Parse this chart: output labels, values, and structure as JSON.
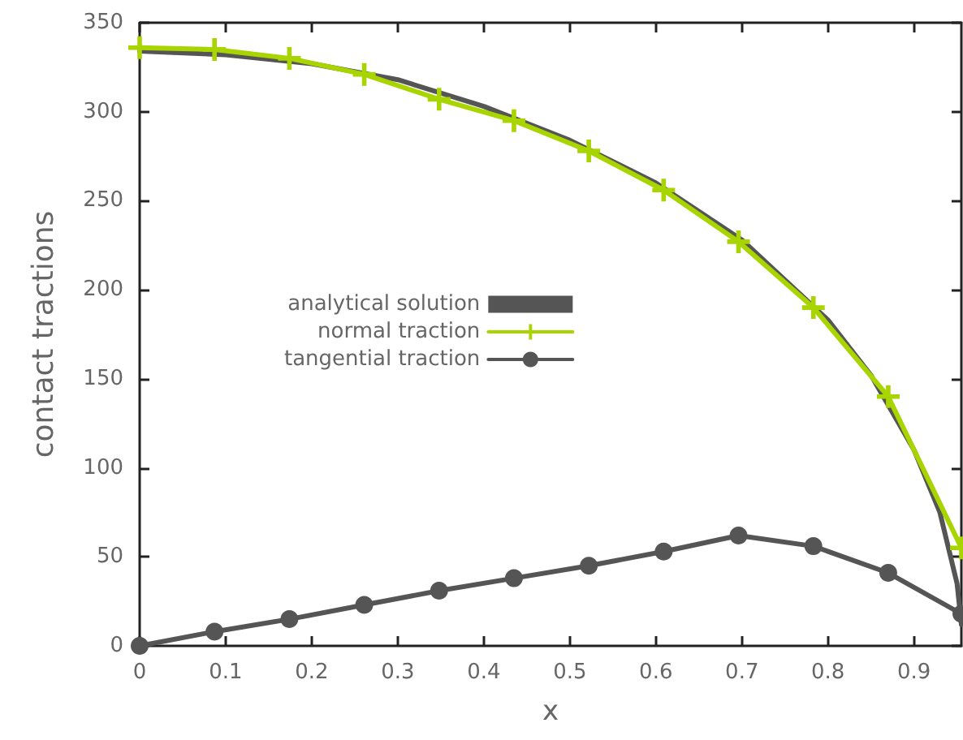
{
  "chart_data": {
    "type": "line",
    "xlabel": "x",
    "ylabel": "contact tractions",
    "xlim": [
      0,
      0.955
    ],
    "xticks": [
      0,
      0.1,
      0.2,
      0.3,
      0.4,
      0.5,
      0.6,
      0.7,
      0.8,
      0.9
    ],
    "ylim": [
      0,
      350
    ],
    "yticks": [
      0,
      50,
      100,
      150,
      200,
      250,
      300,
      350
    ],
    "grid": false,
    "legend": "center",
    "series": [
      {
        "name": "analytical solution",
        "color": "#555555",
        "marker": "none",
        "x": [
          0,
          0.1,
          0.2,
          0.3,
          0.4,
          0.5,
          0.6,
          0.7,
          0.8,
          0.85,
          0.9,
          0.93,
          0.95,
          0.955
        ],
        "values": [
          334,
          332,
          327,
          318,
          303,
          284,
          260,
          228,
          183,
          152,
          110,
          75,
          35,
          12
        ]
      },
      {
        "name": "normal traction",
        "color": "#a8d400",
        "marker": "cross",
        "x": [
          0,
          0.087,
          0.174,
          0.261,
          0.348,
          0.435,
          0.522,
          0.609,
          0.696,
          0.783,
          0.87,
          0.955
        ],
        "values": [
          336,
          335,
          330,
          321,
          307,
          295,
          278,
          256,
          227,
          190,
          140,
          55
        ]
      },
      {
        "name": "tangential traction",
        "color": "#555555",
        "marker": "circle",
        "x": [
          0,
          0.087,
          0.174,
          0.261,
          0.348,
          0.435,
          0.522,
          0.609,
          0.696,
          0.783,
          0.87,
          0.955
        ],
        "values": [
          0,
          8,
          15,
          23,
          31,
          38,
          45,
          53,
          62,
          56,
          41,
          18
        ]
      }
    ]
  }
}
